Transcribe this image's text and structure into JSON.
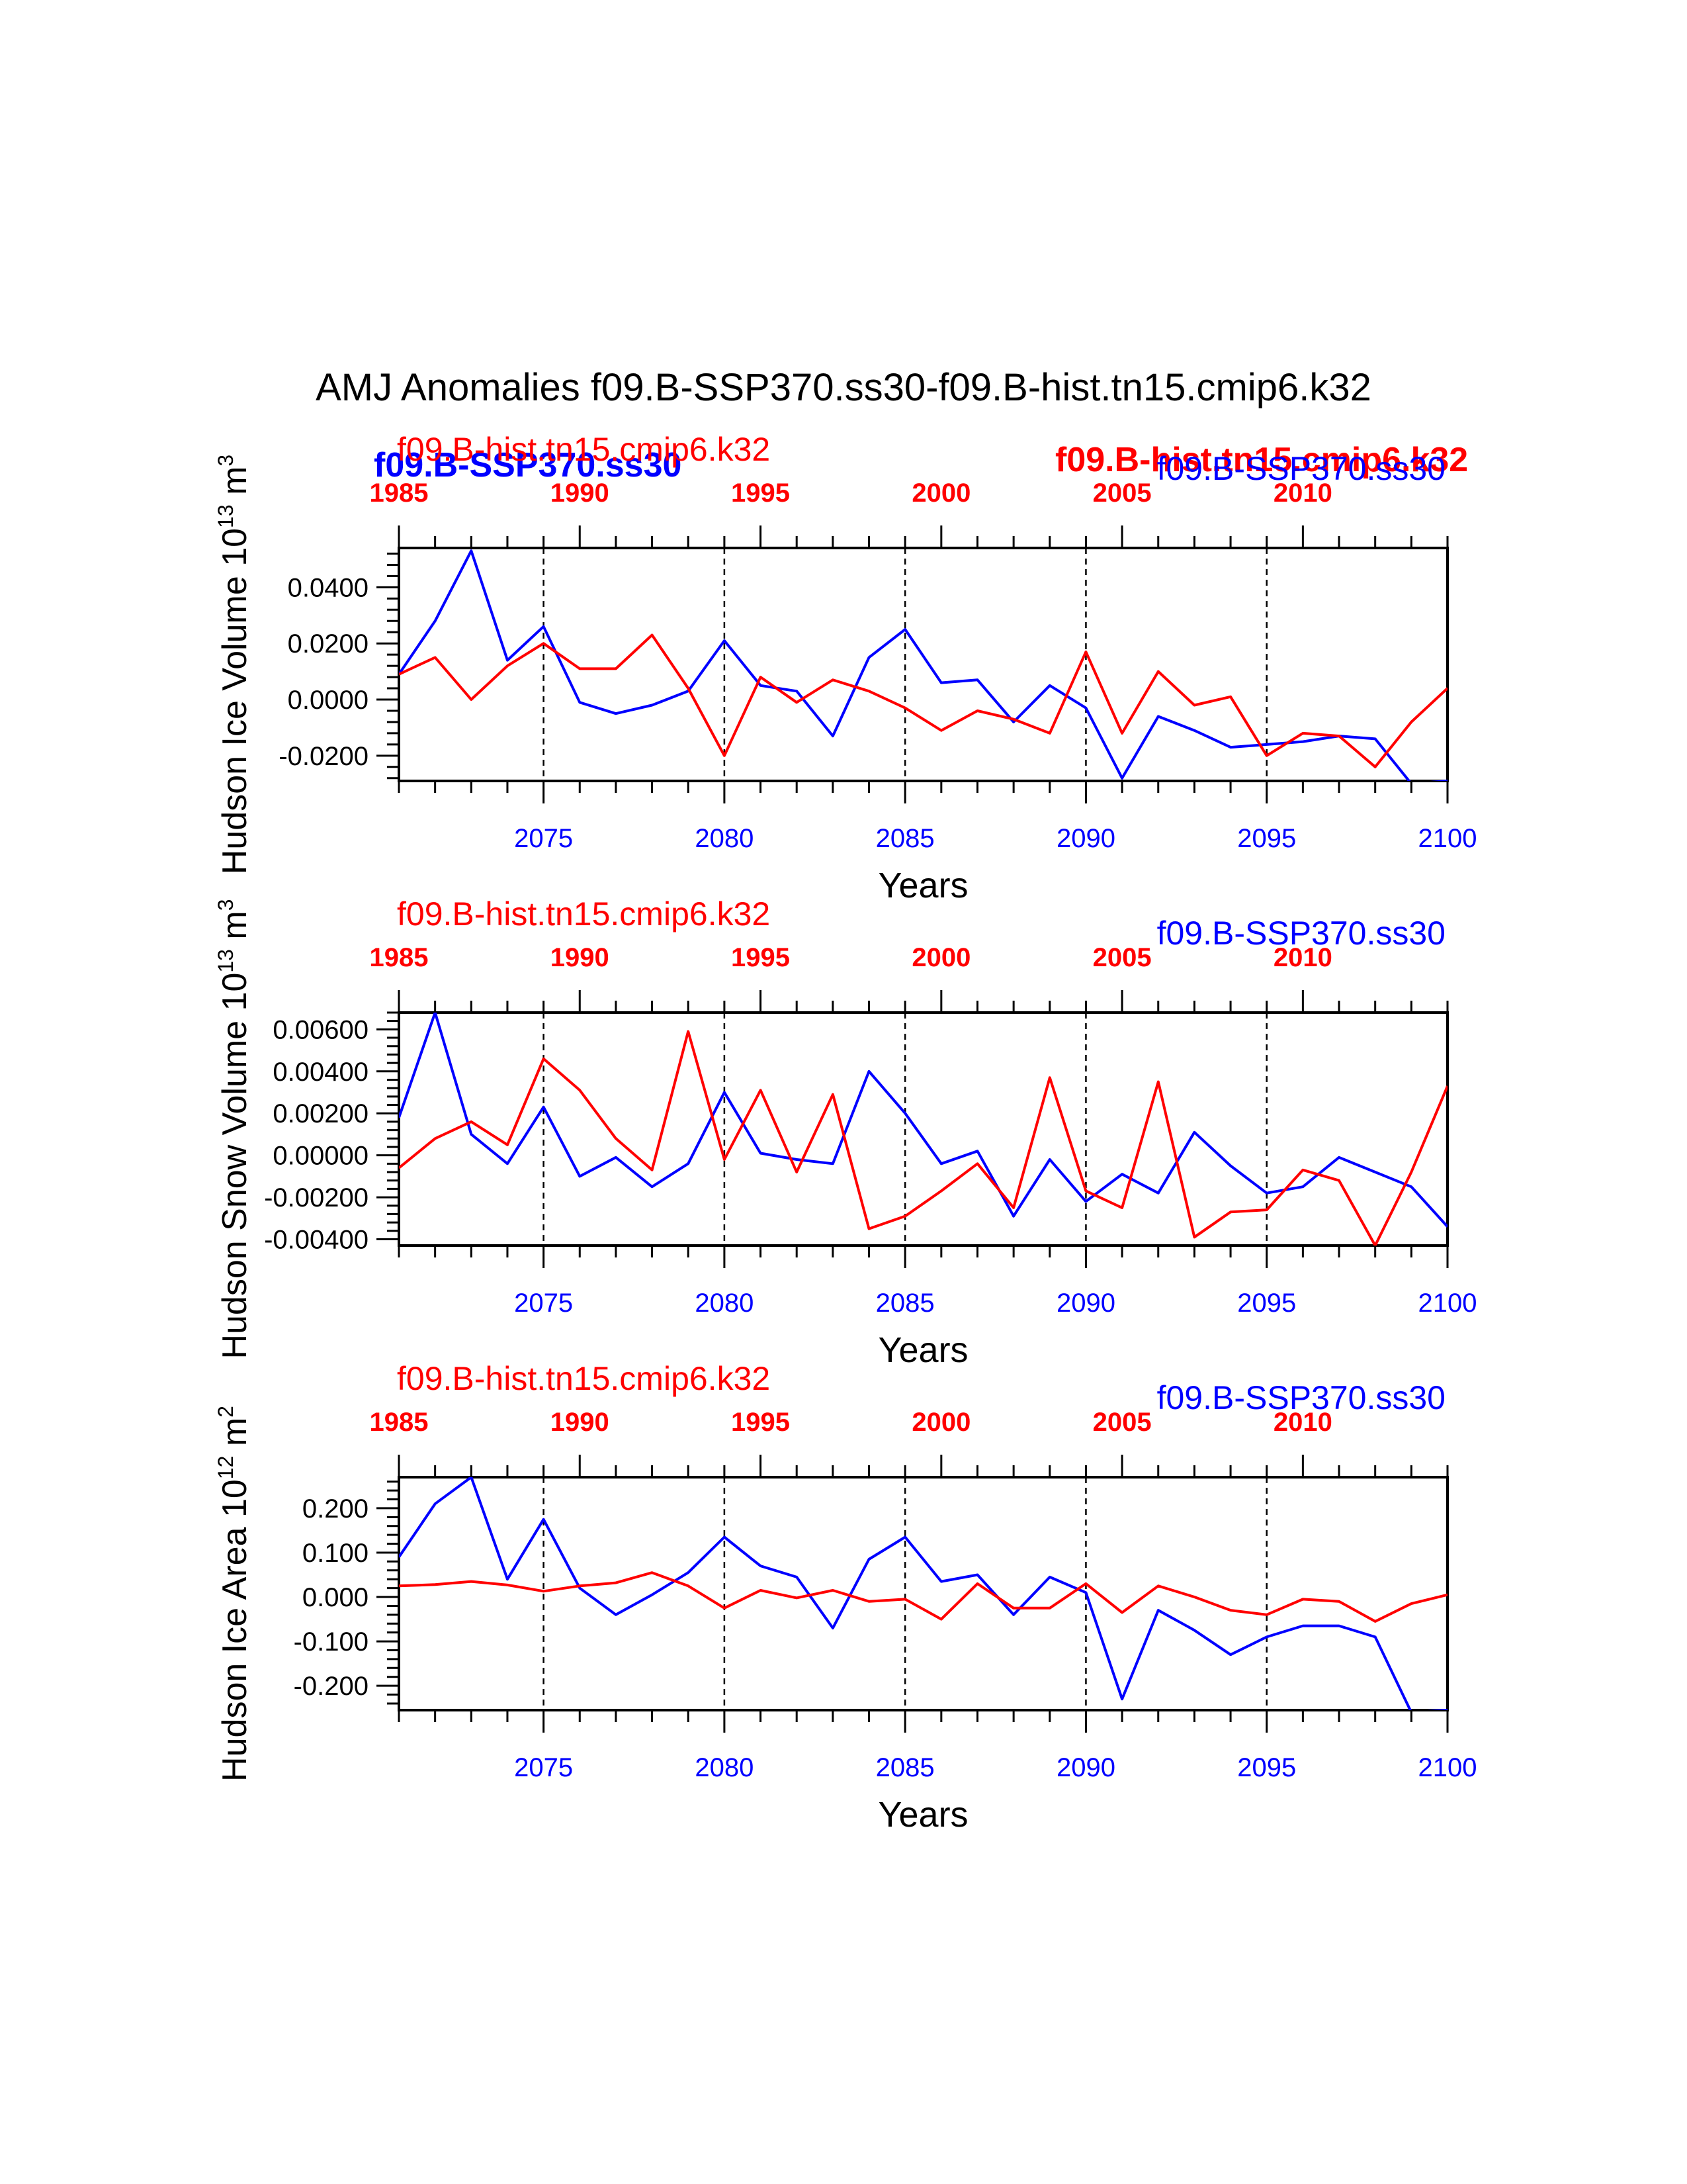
{
  "figure_title": "AMJ Anomalies f09.B-SSP370.ss30-f09.B-hist.tn15.cmip6.k32",
  "colors": {
    "ssp": "#0000ff",
    "hist": "#ff0000",
    "axis": "#000000"
  },
  "overlap_labels": {
    "left_bold": "f09.B-SSP370.ss30",
    "right_bold": "f09.B-hist.tn15.cmip6.k32"
  },
  "chart_data": [
    {
      "type": "line",
      "title": "",
      "ylabel": "Hudson Ice Volume 10",
      "ylabel_exp": "13",
      "ylabel_unit": " m",
      "ylabel_unit_exp": "3",
      "xlabel": "Years",
      "top_left_label": "f09.B-hist.tn15.cmip6.k32",
      "top_right_label": "f09.B-SSP370.ss30",
      "xlim": [
        2071,
        2100
      ],
      "ylim": [
        -0.029,
        0.054
      ],
      "yticks": [
        {
          "value": 0.04,
          "label": "0.0400"
        },
        {
          "value": 0.02,
          "label": "0.0200"
        },
        {
          "value": 0.0,
          "label": "0.0000"
        },
        {
          "value": -0.02,
          "label": "-0.0200"
        }
      ],
      "bottom_ticks": [
        2075,
        2080,
        2085,
        2090,
        2095,
        2100
      ],
      "top_ticks": [
        1985,
        1990,
        1995,
        2000,
        2005,
        2010
      ],
      "grid_x": [
        2075,
        2080,
        2085,
        2090,
        2095
      ],
      "series": [
        {
          "name": "f09.B-SSP370.ss30",
          "color": "#0000ff",
          "x_start": 2071,
          "values": [
            0.009,
            0.028,
            0.053,
            0.014,
            0.026,
            -0.001,
            -0.005,
            -0.002,
            0.003,
            0.021,
            0.005,
            0.003,
            -0.013,
            0.015,
            0.025,
            0.006,
            0.007,
            -0.008,
            0.005,
            -0.003,
            -0.028,
            -0.006,
            -0.011,
            -0.017,
            -0.016,
            -0.015,
            -0.013,
            -0.014,
            -0.03,
            -0.029
          ]
        },
        {
          "name": "f09.B-hist.tn15.cmip6.k32",
          "color": "#ff0000",
          "x_start": 2071,
          "values": [
            0.009,
            0.015,
            0.0,
            0.012,
            0.02,
            0.011,
            0.011,
            0.023,
            0.004,
            -0.02,
            0.008,
            -0.001,
            0.007,
            0.003,
            -0.003,
            -0.011,
            -0.004,
            -0.007,
            -0.012,
            0.017,
            -0.012,
            0.01,
            -0.002,
            0.001,
            -0.02,
            -0.012,
            -0.013,
            -0.024,
            -0.008,
            0.004
          ]
        }
      ]
    },
    {
      "type": "line",
      "title": "",
      "ylabel": "Hudson Snow Volume 10",
      "ylabel_exp": "13",
      "ylabel_unit": " m",
      "ylabel_unit_exp": "3",
      "xlabel": "Years",
      "top_left_label": "f09.B-hist.tn15.cmip6.k32",
      "top_right_label": "f09.B-SSP370.ss30",
      "xlim": [
        2071,
        2100
      ],
      "ylim": [
        -0.0043,
        0.0068
      ],
      "yticks": [
        {
          "value": 0.006,
          "label": "0.00600"
        },
        {
          "value": 0.004,
          "label": "0.00400"
        },
        {
          "value": 0.002,
          "label": "0.00200"
        },
        {
          "value": 0.0,
          "label": "0.00000"
        },
        {
          "value": -0.002,
          "label": "-0.00200"
        },
        {
          "value": -0.004,
          "label": "-0.00400"
        }
      ],
      "bottom_ticks": [
        2075,
        2080,
        2085,
        2090,
        2095,
        2100
      ],
      "top_ticks": [
        1985,
        1990,
        1995,
        2000,
        2005,
        2010
      ],
      "grid_x": [
        2075,
        2080,
        2085,
        2090,
        2095
      ],
      "series": [
        {
          "name": "f09.B-SSP370.ss30",
          "color": "#0000ff",
          "x_start": 2071,
          "values": [
            0.0018,
            0.0068,
            0.001,
            -0.0004,
            0.0023,
            -0.001,
            -0.0001,
            -0.0015,
            -0.0004,
            0.003,
            0.0001,
            -0.0002,
            -0.0004,
            0.004,
            0.002,
            -0.0004,
            0.0002,
            -0.0029,
            -0.0002,
            -0.0022,
            -0.0009,
            -0.0018,
            0.0011,
            -0.0005,
            -0.0018,
            -0.0015,
            -0.0001,
            -0.0008,
            -0.0015,
            -0.0034
          ]
        },
        {
          "name": "f09.B-hist.tn15.cmip6.k32",
          "color": "#ff0000",
          "x_start": 2071,
          "values": [
            -0.0006,
            0.0008,
            0.0016,
            0.0005,
            0.0046,
            0.0031,
            0.0008,
            -0.0007,
            0.0059,
            -0.0002,
            0.0031,
            -0.0008,
            0.0029,
            -0.0035,
            -0.0029,
            -0.0017,
            -0.0004,
            -0.0025,
            0.0037,
            -0.0017,
            -0.0025,
            0.0035,
            -0.0039,
            -0.0027,
            -0.0026,
            -0.0007,
            -0.0012,
            -0.0043,
            -0.0008,
            0.0033
          ]
        }
      ]
    },
    {
      "type": "line",
      "title": "",
      "ylabel": "Hudson Ice Area 10",
      "ylabel_exp": "12",
      "ylabel_unit": " m",
      "ylabel_unit_exp": "2",
      "xlabel": "Years",
      "top_left_label": "f09.B-hist.tn15.cmip6.k32",
      "top_right_label": "f09.B-SSP370.ss30",
      "xlim": [
        2071,
        2100
      ],
      "ylim": [
        -0.255,
        0.27
      ],
      "yticks": [
        {
          "value": 0.2,
          "label": "0.200"
        },
        {
          "value": 0.1,
          "label": "0.100"
        },
        {
          "value": 0.0,
          "label": "0.000"
        },
        {
          "value": -0.1,
          "label": "-0.100"
        },
        {
          "value": -0.2,
          "label": "-0.200"
        }
      ],
      "bottom_ticks": [
        2075,
        2080,
        2085,
        2090,
        2095,
        2100
      ],
      "top_ticks": [
        1985,
        1990,
        1995,
        2000,
        2005,
        2010
      ],
      "grid_x": [
        2075,
        2080,
        2085,
        2090,
        2095
      ],
      "series": [
        {
          "name": "f09.B-SSP370.ss30",
          "color": "#0000ff",
          "x_start": 2071,
          "values": [
            0.09,
            0.21,
            0.27,
            0.04,
            0.175,
            0.02,
            -0.04,
            0.005,
            0.055,
            0.135,
            0.07,
            0.045,
            -0.07,
            0.085,
            0.135,
            0.035,
            0.05,
            -0.04,
            0.045,
            0.01,
            -0.23,
            -0.03,
            -0.075,
            -0.13,
            -0.09,
            -0.065,
            -0.065,
            -0.09,
            -0.26,
            -0.255
          ]
        },
        {
          "name": "f09.B-hist.tn15.cmip6.k32",
          "color": "#ff0000",
          "x_start": 2071,
          "values": [
            0.025,
            0.028,
            0.035,
            0.027,
            0.013,
            0.025,
            0.032,
            0.055,
            0.025,
            -0.025,
            0.015,
            -0.002,
            0.015,
            -0.01,
            -0.005,
            -0.05,
            0.03,
            -0.025,
            -0.025,
            0.03,
            -0.035,
            0.025,
            0.0,
            -0.03,
            -0.04,
            -0.005,
            -0.01,
            -0.055,
            -0.015,
            0.005
          ]
        }
      ]
    }
  ]
}
